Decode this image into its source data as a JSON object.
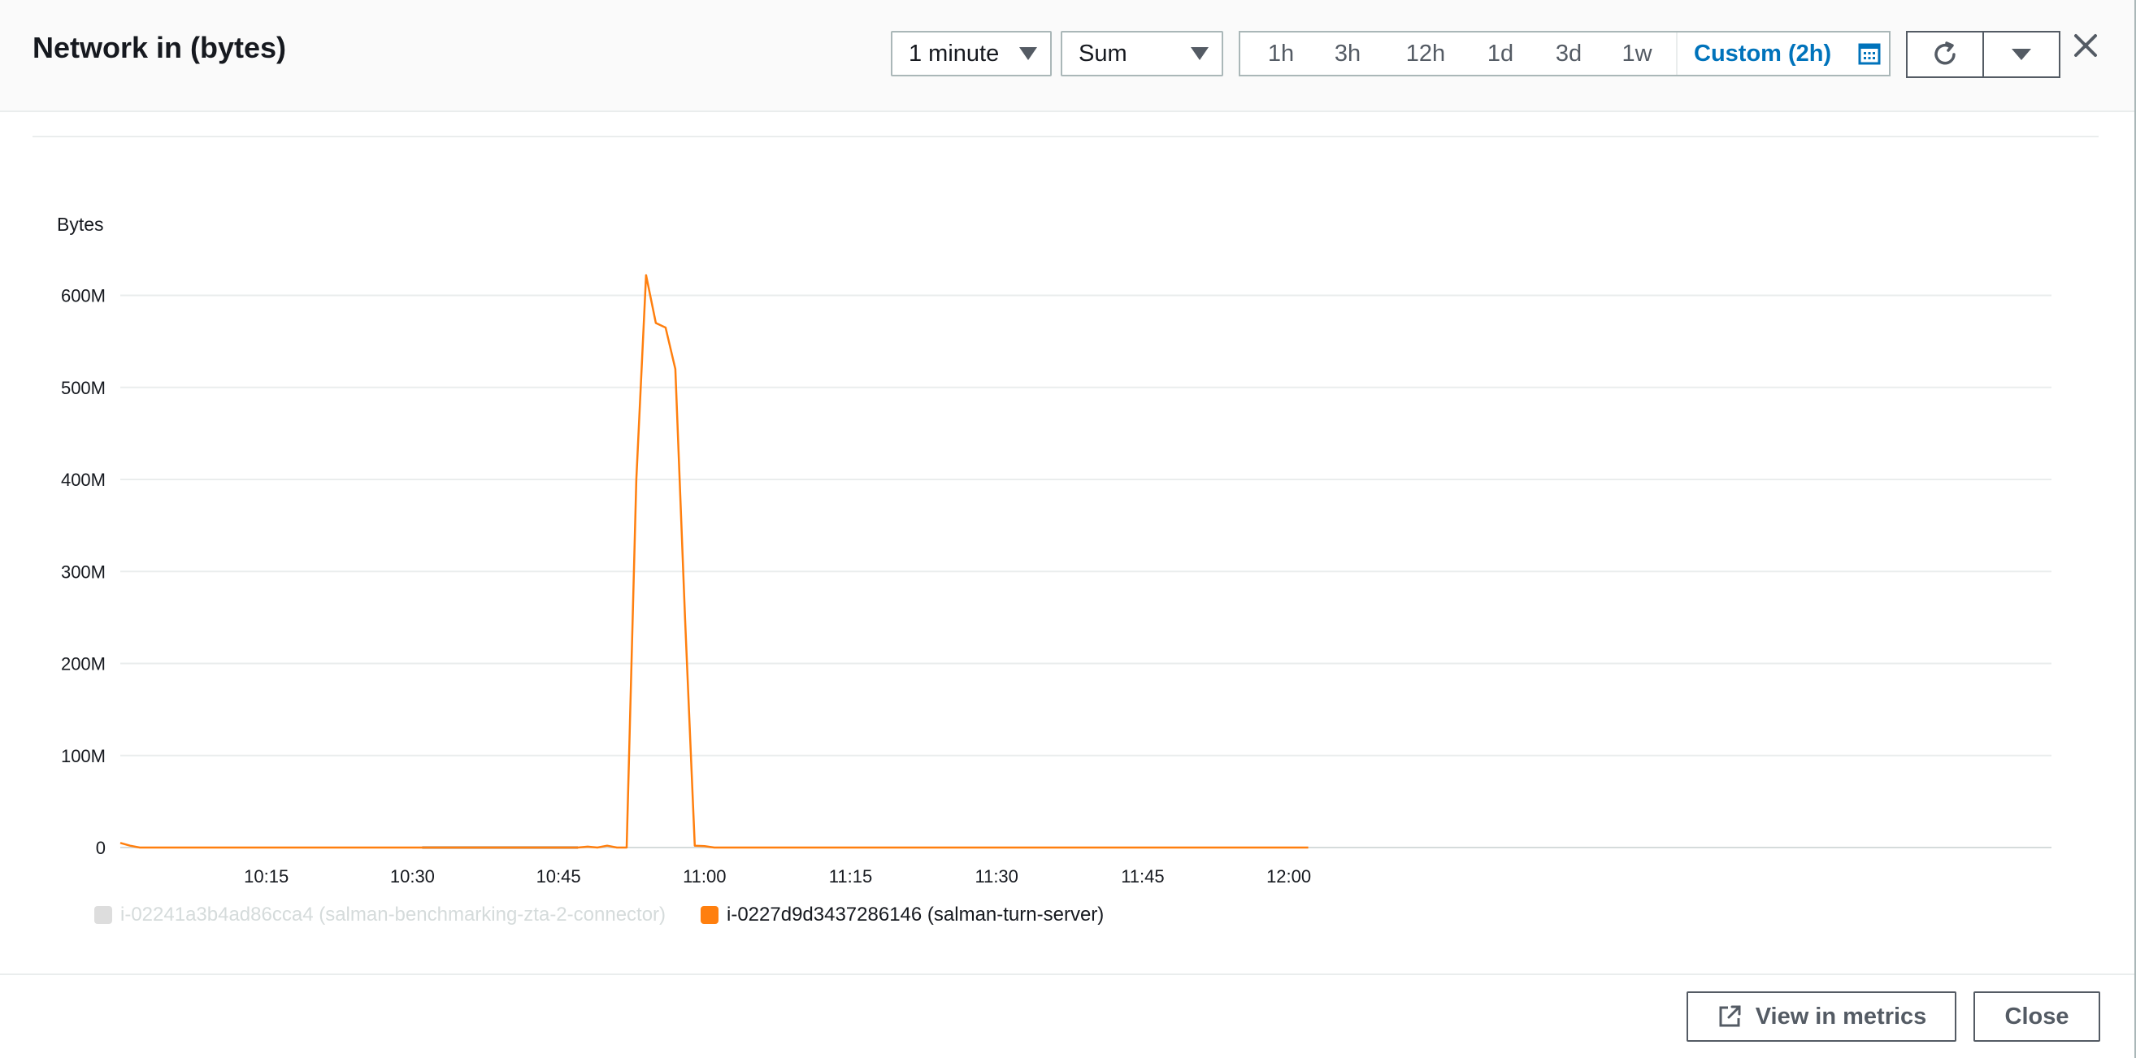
{
  "header": {
    "title": "Network in (bytes)",
    "period_select": "1 minute",
    "stat_select": "Sum",
    "ranges": [
      "1h",
      "3h",
      "12h",
      "1d",
      "3d",
      "1w"
    ],
    "custom_range": "Custom (2h)"
  },
  "footer": {
    "view_in_metrics": "View in metrics",
    "close": "Close"
  },
  "legend": [
    {
      "label": "i-02241a3b4ad86cca4 (salman-benchmarking-zta-2-connector)",
      "color": "#dddddd",
      "muted": true
    },
    {
      "label": "i-0227d9d3437286146 (salman-turn-server)",
      "color": "#ff7f0e",
      "muted": false
    }
  ],
  "chart_data": {
    "type": "line",
    "ylabel": "Bytes",
    "yticks": [
      "0",
      "100M",
      "200M",
      "300M",
      "400M",
      "500M",
      "600M"
    ],
    "ylim": [
      0,
      650000000
    ],
    "xticks": [
      "10:15",
      "10:30",
      "10:45",
      "11:00",
      "11:15",
      "11:30",
      "11:45",
      "12:00"
    ],
    "xlim": [
      "10:00",
      "12:02"
    ],
    "grid": true,
    "series": [
      {
        "name": "i-0227d9d3437286146 (salman-turn-server)",
        "color": "#ff7f0e",
        "x": [
          "10:00",
          "10:01",
          "10:02",
          "10:03",
          "10:30",
          "10:31",
          "10:47",
          "10:48",
          "10:49",
          "10:50",
          "10:51",
          "10:52",
          "10:53",
          "10:54",
          "10:55",
          "10:56",
          "10:57",
          "10:58",
          "10:59",
          "11:00",
          "11:01",
          "12:02"
        ],
        "y": [
          5000000,
          2000000,
          0,
          0,
          0,
          0,
          0,
          1000000,
          0,
          2000000,
          0,
          0,
          400000000,
          622000000,
          570000000,
          565000000,
          520000000,
          250000000,
          2000000,
          1500000,
          0,
          0
        ]
      },
      {
        "name": "i-02241a3b4ad86cca4 (salman-benchmarking-zta-2-connector)",
        "color": "#cccccc",
        "x": [
          "10:31",
          "10:47"
        ],
        "y": [
          0,
          0
        ]
      }
    ]
  }
}
